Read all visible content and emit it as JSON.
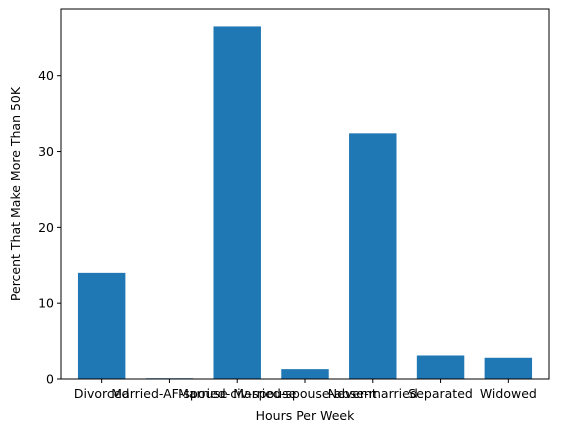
{
  "chart_data": {
    "type": "bar",
    "categories": [
      "Divorced",
      "Married-AF-spouse",
      "Married-civ-spouse",
      "Married-spouse-absent",
      "Never-married",
      "Separated",
      "Widowed"
    ],
    "values": [
      14.0,
      0.1,
      46.5,
      1.3,
      32.4,
      3.1,
      2.8
    ],
    "title": "",
    "xlabel": "Hours Per Week",
    "ylabel": "Percent That Make More Than 50K",
    "ylim": [
      0,
      48.8
    ],
    "yticks": [
      0,
      10,
      20,
      30,
      40
    ],
    "bar_color": "#1f77b4",
    "grid": false,
    "legend": "none"
  }
}
